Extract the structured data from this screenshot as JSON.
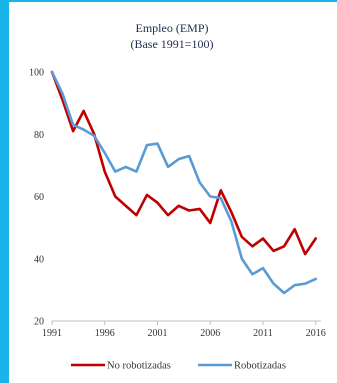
{
  "chart_data": {
    "type": "line",
    "title": "Empleo (EMP)",
    "subtitle": "(Base 1991=100)",
    "xlabel": "",
    "ylabel": "",
    "x_ticks": [
      "1991",
      "1996",
      "2001",
      "2006",
      "2011",
      "2016"
    ],
    "y_ticks": [
      "20",
      "40",
      "60",
      "80",
      "100"
    ],
    "xlim": [
      1991,
      2016.5
    ],
    "ylim": [
      20,
      100
    ],
    "grid": false,
    "legend_position": "bottom",
    "x": [
      1991,
      1992,
      1993,
      1994,
      1995,
      1996,
      1997,
      1998,
      1999,
      2000,
      2001,
      2002,
      2003,
      2004,
      2005,
      2006,
      2007,
      2008,
      2009,
      2010,
      2011,
      2012,
      2013,
      2014,
      2015,
      2016
    ],
    "series": [
      {
        "name": "No robotizadas",
        "color": "#c00000",
        "values": [
          100,
          91,
          81,
          87.5,
          80,
          68,
          60,
          57,
          54,
          60.5,
          58,
          54,
          57,
          55.5,
          56,
          51.5,
          62,
          55,
          47,
          44,
          46.5,
          42.5,
          44,
          49.5,
          41.5,
          46.5
        ]
      },
      {
        "name": "Robotizadas",
        "color": "#5b9bd5",
        "values": [
          100,
          93,
          83,
          81.5,
          79.5,
          74,
          68,
          69.5,
          68,
          76.5,
          77,
          69.5,
          72,
          73,
          64.5,
          60,
          59.5,
          52,
          40,
          35,
          37,
          32,
          29,
          31.5,
          32,
          33.5
        ]
      }
    ]
  }
}
